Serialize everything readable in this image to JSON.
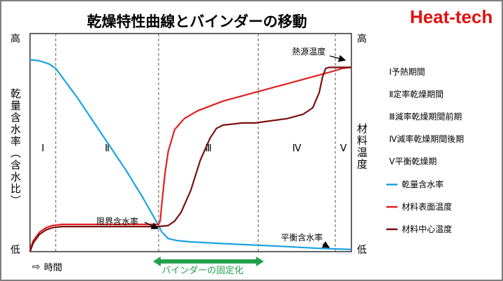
{
  "brand": "Heat-tech",
  "colors": {
    "water": "#1aa3e0",
    "surface": "#e02020",
    "center": "#7a1010",
    "fixation": "#22a04a",
    "brand": "#e01010"
  },
  "chart_data": {
    "type": "line",
    "title": "乾燥特性曲線とバインダーの移動",
    "left_axis": {
      "label": "乾量含水率（含水比）",
      "top": "高",
      "bottom": "低"
    },
    "right_axis": {
      "label": "材料温度",
      "top": "高",
      "bottom": "低"
    },
    "x_axis": {
      "label": "時間",
      "arrow": "⇨"
    },
    "periods": [
      "Ⅰ",
      "Ⅱ",
      "Ⅲ",
      "Ⅳ",
      "Ⅴ"
    ],
    "period_legend": [
      "Ⅰ予熱期間",
      "Ⅱ定率乾燥期間",
      "Ⅲ減率乾燥期間前期",
      "Ⅳ減率乾燥期間後期",
      "Ⅴ平衡乾燥期"
    ],
    "annotations": {
      "heat_source": "熱源温度",
      "critical": "限界含水率",
      "equilibrium": "平衡含水率",
      "binder": "バインダーの固定化"
    },
    "series": [
      {
        "name": "乾量含水率",
        "color": "#1aa3e0",
        "x": [
          0,
          0.03,
          0.06,
          0.07,
          0.08,
          0.1,
          0.15,
          0.2,
          0.25,
          0.3,
          0.35,
          0.4,
          0.41,
          0.43,
          0.46,
          0.5,
          0.6,
          0.7,
          0.8,
          0.9,
          1.0
        ],
        "y": [
          0.88,
          0.875,
          0.86,
          0.85,
          0.84,
          0.8,
          0.7,
          0.59,
          0.48,
          0.37,
          0.25,
          0.12,
          0.09,
          0.06,
          0.05,
          0.045,
          0.037,
          0.03,
          0.023,
          0.015,
          0.01
        ]
      },
      {
        "name": "材料表面温度",
        "color": "#e02020",
        "x": [
          0,
          0.01,
          0.03,
          0.05,
          0.07,
          0.1,
          0.15,
          0.2,
          0.3,
          0.4,
          0.405,
          0.41,
          0.42,
          0.43,
          0.45,
          0.48,
          0.52,
          0.6,
          0.7,
          0.8,
          0.9,
          0.95,
          0.97,
          1.0
        ],
        "y": [
          0.01,
          0.05,
          0.09,
          0.11,
          0.12,
          0.125,
          0.125,
          0.125,
          0.125,
          0.125,
          0.14,
          0.22,
          0.36,
          0.46,
          0.56,
          0.61,
          0.645,
          0.69,
          0.73,
          0.77,
          0.81,
          0.83,
          0.84,
          0.845
        ]
      },
      {
        "name": "材料中心温度",
        "color": "#7a1010",
        "x": [
          0,
          0.01,
          0.03,
          0.05,
          0.07,
          0.1,
          0.15,
          0.2,
          0.3,
          0.4,
          0.43,
          0.45,
          0.47,
          0.5,
          0.53,
          0.56,
          0.58,
          0.6,
          0.63,
          0.66,
          0.7,
          0.8,
          0.85,
          0.88,
          0.9,
          0.91,
          0.92,
          0.93,
          0.935,
          0.94,
          0.95,
          0.97,
          1.0
        ],
        "y": [
          0.0,
          0.04,
          0.08,
          0.1,
          0.11,
          0.115,
          0.115,
          0.115,
          0.115,
          0.115,
          0.12,
          0.14,
          0.18,
          0.28,
          0.42,
          0.52,
          0.565,
          0.58,
          0.585,
          0.59,
          0.59,
          0.61,
          0.63,
          0.66,
          0.73,
          0.8,
          0.84,
          0.845,
          0.845,
          0.845,
          0.845,
          0.845,
          0.845
        ]
      }
    ],
    "period_boundaries": [
      0.08,
      0.4,
      0.71,
      0.95
    ],
    "binder_range": [
      0.4,
      0.71
    ],
    "xlim": [
      0,
      1
    ],
    "ylim": [
      0,
      1
    ],
    "grid": false
  }
}
